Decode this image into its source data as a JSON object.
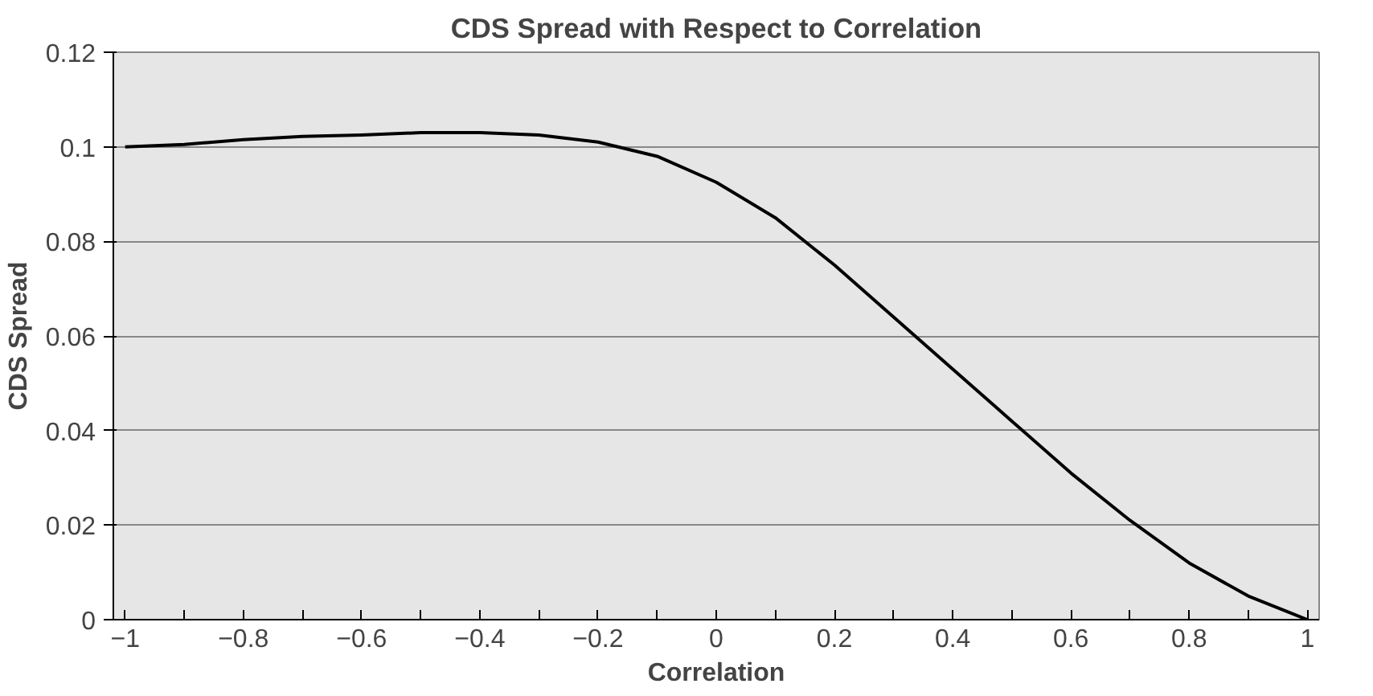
{
  "chart_data": {
    "type": "line",
    "title": "CDS Spread with Respect to Correlation",
    "xlabel": "Correlation",
    "ylabel": "CDS Spread",
    "x": [
      -1,
      -0.9,
      -0.8,
      -0.7,
      -0.6,
      -0.5,
      -0.4,
      -0.3,
      -0.2,
      -0.1,
      0,
      0.1,
      0.2,
      0.3,
      0.4,
      0.5,
      0.6,
      0.7,
      0.8,
      0.9,
      1
    ],
    "series": [
      {
        "color": "#000000",
        "values": [
          0.1,
          0.1005,
          0.1015,
          0.1022,
          0.1025,
          0.103,
          0.103,
          0.1025,
          0.101,
          0.098,
          0.0925,
          0.085,
          0.075,
          0.064,
          0.053,
          0.042,
          0.031,
          0.021,
          0.012,
          0.005,
          0.0
        ]
      }
    ],
    "xlim": [
      -1.02,
      1.02
    ],
    "ylim": [
      0,
      0.12
    ],
    "xticks": [
      {
        "value": -1,
        "label": "−1"
      },
      {
        "value": -0.9,
        "label": null
      },
      {
        "value": -0.8,
        "label": "−0.8"
      },
      {
        "value": -0.7,
        "label": null
      },
      {
        "value": -0.6,
        "label": "−0.6"
      },
      {
        "value": -0.5,
        "label": null
      },
      {
        "value": -0.4,
        "label": "−0.4"
      },
      {
        "value": -0.3,
        "label": null
      },
      {
        "value": -0.2,
        "label": "−0.2"
      },
      {
        "value": -0.1,
        "label": null
      },
      {
        "value": 0,
        "label": "0"
      },
      {
        "value": 0.1,
        "label": null
      },
      {
        "value": 0.2,
        "label": "0.2"
      },
      {
        "value": 0.3,
        "label": null
      },
      {
        "value": 0.4,
        "label": "0.4"
      },
      {
        "value": 0.5,
        "label": null
      },
      {
        "value": 0.6,
        "label": "0.6"
      },
      {
        "value": 0.7,
        "label": null
      },
      {
        "value": 0.8,
        "label": "0.8"
      },
      {
        "value": 0.9,
        "label": null
      },
      {
        "value": 1,
        "label": "1"
      }
    ],
    "yticks": [
      0,
      0.02,
      0.04,
      0.06,
      0.08,
      0.1,
      0.12
    ],
    "grid": "y",
    "line_style": "solid",
    "marker": "none"
  }
}
